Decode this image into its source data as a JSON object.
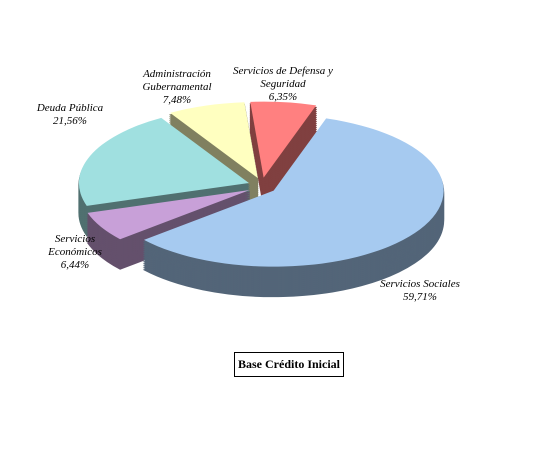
{
  "chart_data": {
    "type": "pie",
    "title": "Base Crédito Inicial",
    "categories": [
      "Servicios Sociales",
      "Servicios Económicos",
      "Deuda Pública",
      "Administración Gubernamental",
      "Servicios de Defensa y Seguridad"
    ],
    "values": [
      59.71,
      6.44,
      21.56,
      7.48,
      6.35
    ],
    "value_labels": [
      "59,71%",
      "6,44%",
      "21,56%",
      "7,48%",
      "6,35%"
    ],
    "colors": [
      "#a6caf0",
      "#c8a0d8",
      "#a0e0e0",
      "#ffffc0",
      "#ff8080"
    ]
  }
}
